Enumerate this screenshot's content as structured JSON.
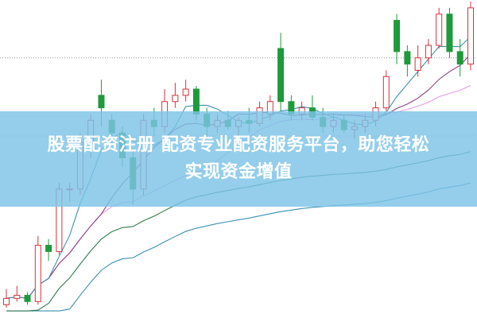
{
  "banner": {
    "line1": "股票配资注册 配资专业配资服务平台，助您轻松",
    "line2": "实现资金增值"
  },
  "chart_data": {
    "type": "candlestick",
    "title": "",
    "xlabel": "",
    "ylabel": "",
    "ylim": [
      0,
      100
    ],
    "grid": false,
    "reference_lines": [
      82,
      57
    ],
    "candles": [
      [
        3,
        8,
        2,
        5
      ],
      [
        5,
        9,
        4,
        6
      ],
      [
        6,
        7,
        3,
        4
      ],
      [
        4,
        25,
        3,
        22
      ],
      [
        22,
        24,
        17,
        20
      ],
      [
        20,
        42,
        19,
        40
      ],
      [
        40,
        42,
        36,
        40
      ],
      [
        40,
        58,
        38,
        55
      ],
      [
        55,
        64,
        50,
        62
      ],
      [
        70,
        75,
        60,
        66
      ],
      [
        62,
        64,
        54,
        58
      ],
      [
        58,
        60,
        47,
        50
      ],
      [
        50,
        52,
        35,
        40
      ],
      [
        40,
        64,
        38,
        62
      ],
      [
        62,
        66,
        57,
        60
      ],
      [
        60,
        72,
        58,
        68
      ],
      [
        68,
        74,
        66,
        70
      ],
      [
        70,
        75,
        68,
        72
      ],
      [
        72,
        73,
        62,
        64
      ],
      [
        64,
        66,
        56,
        60
      ],
      [
        60,
        64,
        58,
        62
      ],
      [
        62,
        65,
        59,
        60
      ],
      [
        60,
        63,
        57,
        62
      ],
      [
        62,
        66,
        58,
        61
      ],
      [
        61,
        68,
        60,
        66
      ],
      [
        64,
        70,
        62,
        68
      ],
      [
        85,
        90,
        65,
        68
      ],
      [
        68,
        70,
        62,
        64
      ],
      [
        64,
        68,
        62,
        66
      ],
      [
        66,
        70,
        62,
        63
      ],
      [
        63,
        66,
        58,
        60
      ],
      [
        60,
        64,
        58,
        62
      ],
      [
        62,
        64,
        58,
        59
      ],
      [
        59,
        62,
        56,
        60
      ],
      [
        60,
        64,
        58,
        62
      ],
      [
        62,
        68,
        60,
        66
      ],
      [
        66,
        78,
        65,
        76
      ],
      [
        94,
        96,
        80,
        84
      ],
      [
        84,
        86,
        76,
        80
      ],
      [
        78,
        86,
        76,
        82
      ],
      [
        82,
        88,
        80,
        86
      ],
      [
        86,
        98,
        85,
        96
      ],
      [
        96,
        98,
        82,
        84
      ],
      [
        84,
        88,
        76,
        80
      ],
      [
        80,
        100,
        78,
        98
      ]
    ],
    "colors": {
      "up": "#d9303a",
      "down": "#1e9a3c",
      "ma5": "#3f8fa8",
      "ma10": "#8c3f7e",
      "ma20": "#e49ee0",
      "ma60": "#2f7a4f",
      "ma_long": "#3a8fb0",
      "reference": "#999999"
    }
  }
}
